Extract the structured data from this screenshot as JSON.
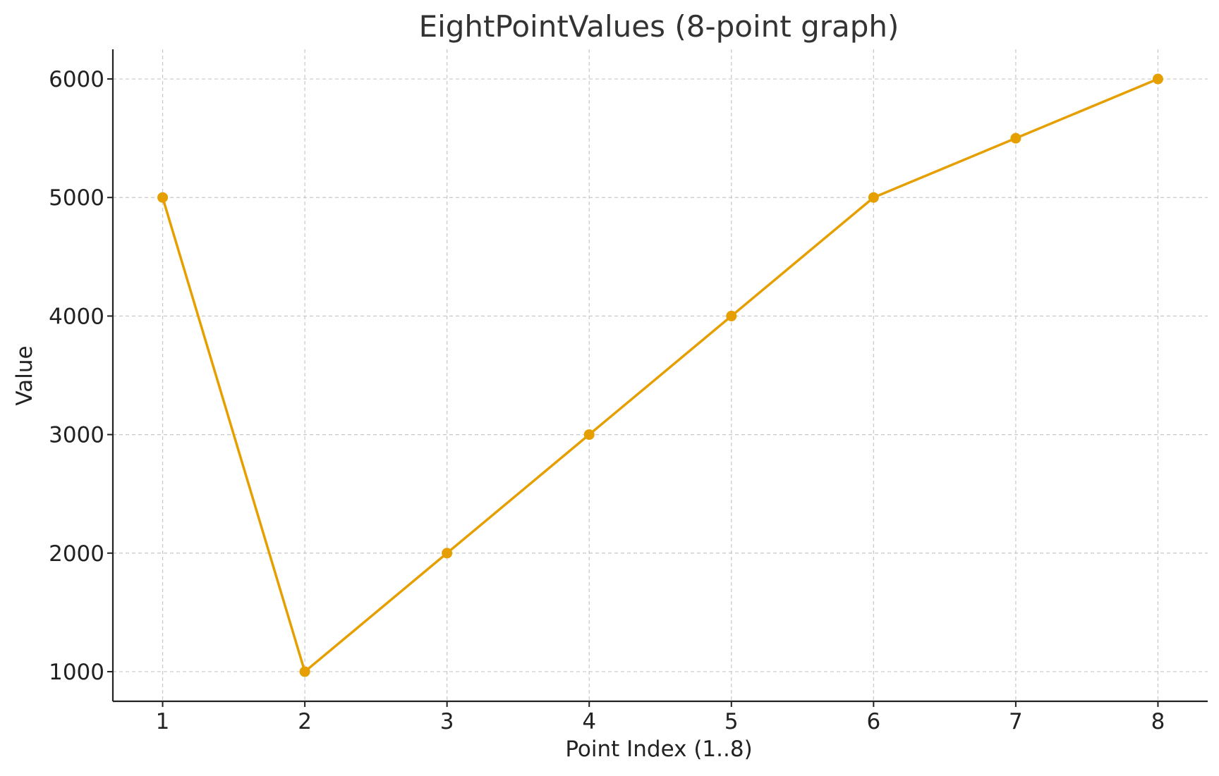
{
  "chart_data": {
    "type": "line",
    "title": "EightPointValues (8-point graph)",
    "xlabel": "Point Index (1..8)",
    "ylabel": "Value",
    "x": [
      1,
      2,
      3,
      4,
      5,
      6,
      7,
      8
    ],
    "x_ticks": [
      "1",
      "2",
      "3",
      "4",
      "5",
      "6",
      "7",
      "8"
    ],
    "y_ticks": [
      "1000",
      "2000",
      "3000",
      "4000",
      "5000",
      "6000"
    ],
    "series": [
      {
        "values": [
          5000,
          1000,
          2000,
          3000,
          4000,
          5000,
          5500,
          6000
        ],
        "color": "#E69F00"
      }
    ],
    "xlim": [
      0.65,
      8.35
    ],
    "ylim": [
      750,
      6250
    ],
    "grid": true,
    "legend": "none"
  }
}
